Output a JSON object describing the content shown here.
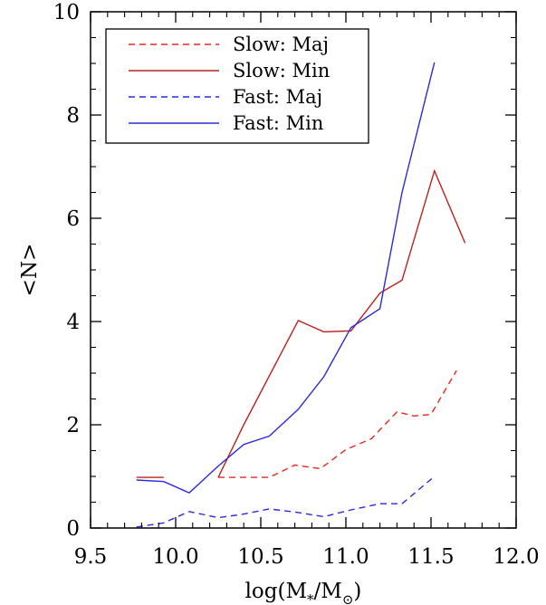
{
  "chart_data": {
    "type": "line",
    "title": "",
    "xlabel": "log(M*/M⊙)",
    "ylabel": "<N>",
    "xlim": [
      9.5,
      12.0
    ],
    "ylim": [
      0,
      10
    ],
    "xticks": [
      9.5,
      10.0,
      10.5,
      11.0,
      11.5,
      12.0
    ],
    "xtick_labels": [
      "9.5",
      "10.0",
      "10.5",
      "11.0",
      "11.5",
      "12.0"
    ],
    "yticks": [
      0,
      2,
      4,
      6,
      8,
      10
    ],
    "ytick_labels": [
      "0",
      "2",
      "4",
      "6",
      "8",
      "10"
    ],
    "grid": false,
    "legend_position": "top-left",
    "series": [
      {
        "name": "Slow: Maj",
        "color": "#e8261c",
        "dash": "dashed",
        "segments": [
          [
            [
              10.25,
              0.98
            ],
            [
              10.4,
              0.98
            ],
            [
              10.55,
              0.98
            ],
            [
              10.7,
              1.22
            ],
            [
              10.85,
              1.15
            ],
            [
              11.0,
              1.52
            ],
            [
              11.15,
              1.73
            ],
            [
              11.3,
              2.25
            ],
            [
              11.4,
              2.17
            ],
            [
              11.5,
              2.2
            ],
            [
              11.65,
              3.05
            ]
          ]
        ]
      },
      {
        "name": "Slow: Min",
        "color": "#c0201e",
        "dash": "solid",
        "segments": [
          [
            [
              9.77,
              0.98
            ],
            [
              9.93,
              0.98
            ]
          ],
          [
            [
              10.25,
              0.98
            ],
            [
              10.4,
              2.0
            ],
            [
              10.72,
              4.02
            ],
            [
              10.87,
              3.8
            ],
            [
              11.03,
              3.82
            ],
            [
              11.2,
              4.55
            ],
            [
              11.33,
              4.8
            ],
            [
              11.52,
              6.92
            ],
            [
              11.7,
              5.52
            ]
          ]
        ]
      },
      {
        "name": "Fast: Maj",
        "color": "#2a2ae0",
        "dash": "dashed",
        "segments": [
          [
            [
              9.77,
              0.02
            ],
            [
              9.93,
              0.1
            ],
            [
              10.08,
              0.32
            ],
            [
              10.25,
              0.2
            ],
            [
              10.4,
              0.27
            ],
            [
              10.55,
              0.37
            ],
            [
              10.72,
              0.3
            ],
            [
              10.87,
              0.22
            ],
            [
              11.03,
              0.35
            ],
            [
              11.2,
              0.47
            ],
            [
              11.33,
              0.47
            ],
            [
              11.52,
              1.0
            ]
          ]
        ]
      },
      {
        "name": "Fast: Min",
        "color": "#2a2ae0",
        "dash": "solid",
        "segments": [
          [
            [
              9.77,
              0.93
            ],
            [
              9.93,
              0.9
            ],
            [
              10.08,
              0.68
            ],
            [
              10.25,
              1.2
            ],
            [
              10.4,
              1.62
            ],
            [
              10.55,
              1.78
            ],
            [
              10.72,
              2.3
            ],
            [
              10.87,
              2.93
            ],
            [
              11.03,
              3.88
            ],
            [
              11.2,
              4.25
            ],
            [
              11.33,
              6.5
            ],
            [
              11.52,
              9.02
            ]
          ]
        ]
      }
    ]
  }
}
